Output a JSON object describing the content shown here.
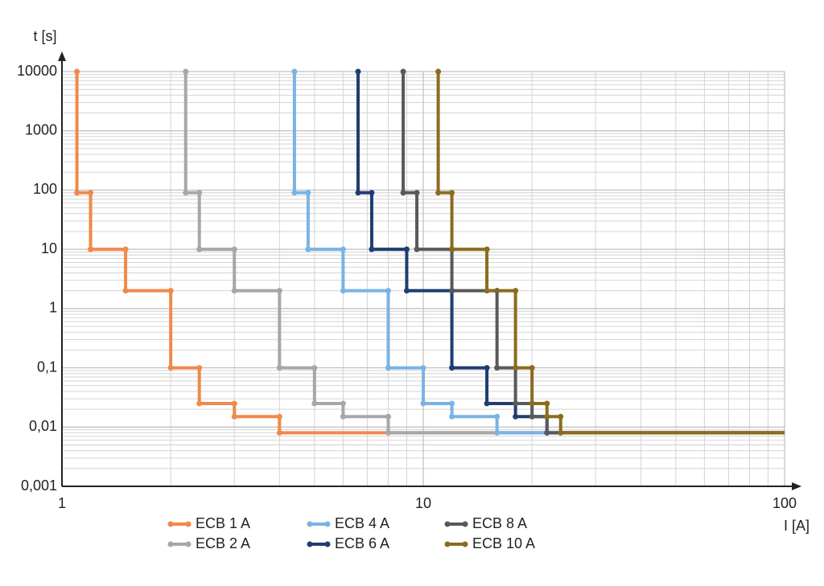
{
  "chart_data": {
    "type": "step-line",
    "xlabel": "I [A]",
    "ylabel": "t [s]",
    "log_x": true,
    "log_y": true,
    "grid": true,
    "xlim": [
      1,
      100
    ],
    "xticks": [
      1,
      10,
      100
    ],
    "ylim": [
      0.001,
      10000
    ],
    "yticks": [
      {
        "value": 0.001,
        "label": "0,001"
      },
      {
        "value": 0.01,
        "label": "0,01"
      },
      {
        "value": 0.1,
        "label": "0,1"
      },
      1,
      10,
      100,
      1000,
      10000
    ],
    "series": [
      {
        "name": "ECB 1 A",
        "color": "#f0894a",
        "x": [
          1.1,
          1.1,
          1.2,
          1.2,
          1.5,
          1.5,
          2,
          2,
          2.4,
          2.4,
          3,
          3,
          4,
          4,
          100
        ],
        "values": [
          10000,
          90,
          90,
          10,
          10,
          2,
          2,
          0.1,
          0.1,
          0.025,
          0.025,
          0.015,
          0.015,
          0.008,
          0.008
        ]
      },
      {
        "name": "ECB 2 A",
        "color": "#a7a7a7",
        "x": [
          2.2,
          2.2,
          2.4,
          2.4,
          3,
          3,
          4,
          4,
          5,
          5,
          6,
          6,
          8,
          8,
          100
        ],
        "values": [
          10000,
          90,
          90,
          10,
          10,
          2,
          2,
          0.1,
          0.1,
          0.025,
          0.025,
          0.015,
          0.015,
          0.008,
          0.008
        ]
      },
      {
        "name": "ECB 4 A",
        "color": "#7ab3e3",
        "x": [
          4.4,
          4.4,
          4.8,
          4.8,
          6,
          6,
          8,
          8,
          10,
          10,
          12,
          12,
          16,
          16,
          100
        ],
        "values": [
          10000,
          90,
          90,
          10,
          10,
          2,
          2,
          0.1,
          0.1,
          0.025,
          0.025,
          0.015,
          0.015,
          0.008,
          0.008
        ]
      },
      {
        "name": "ECB 6 A",
        "color": "#1f3d70",
        "x": [
          6.6,
          6.6,
          7.2,
          7.2,
          9,
          9,
          12,
          12,
          15,
          15,
          18,
          18,
          22,
          22,
          100
        ],
        "values": [
          10000,
          90,
          90,
          10,
          10,
          2,
          2,
          0.1,
          0.1,
          0.025,
          0.025,
          0.015,
          0.015,
          0.008,
          0.008
        ]
      },
      {
        "name": "ECB 8 A",
        "color": "#58595b",
        "x": [
          8.8,
          8.8,
          9.6,
          9.6,
          12,
          12,
          16,
          16,
          18,
          18,
          20,
          20,
          22,
          22,
          100
        ],
        "values": [
          10000,
          90,
          90,
          10,
          10,
          2,
          2,
          0.1,
          0.1,
          0.025,
          0.025,
          0.015,
          0.015,
          0.008,
          0.008
        ]
      },
      {
        "name": "ECB 10 A",
        "color": "#8b6c1f",
        "x": [
          11,
          11,
          12,
          12,
          15,
          15,
          18,
          18,
          20,
          20,
          22,
          22,
          24,
          24,
          100
        ],
        "values": [
          10000,
          90,
          90,
          10,
          10,
          2,
          2,
          0.1,
          0.1,
          0.025,
          0.025,
          0.015,
          0.015,
          0.008,
          0.008
        ]
      }
    ]
  }
}
